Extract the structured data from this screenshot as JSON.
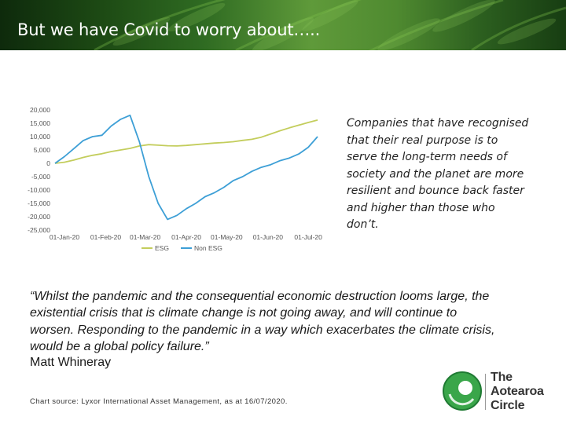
{
  "header": {
    "title": "But we have Covid to worry about….."
  },
  "sidebar_text": "Companies that have recognised that their real purpose is to serve the long-term needs of society and the planet are more resilient and bounce back faster and higher than those who don’t.",
  "quote": {
    "text": "“Whilst the pandemic and the consequential economic destruction looms large, the existential crisis that is climate change is not going away, and will continue to worsen. Responding to the pandemic in a way which exacerbates the climate crisis, would be a global policy failure.”",
    "author": "Matt Whineray"
  },
  "source_note": "Chart source: Lyxor International Asset Management, as at 16/07/2020.",
  "logo": {
    "lines": [
      "The",
      "Aotearoa",
      "Circle"
    ]
  },
  "colors": {
    "esg": "#c3cd5c",
    "non_esg": "#3d9fd6",
    "banner": "#2f6b22",
    "logo_green": "#3aa64a"
  },
  "chart_data": {
    "type": "line",
    "x": [
      "01-Jan-20",
      "08-Jan-20",
      "15-Jan-20",
      "22-Jan-20",
      "29-Jan-20",
      "05-Feb-20",
      "12-Feb-20",
      "19-Feb-20",
      "26-Feb-20",
      "04-Mar-20",
      "11-Mar-20",
      "18-Mar-20",
      "25-Mar-20",
      "01-Apr-20",
      "08-Apr-20",
      "15-Apr-20",
      "22-Apr-20",
      "29-Apr-20",
      "06-May-20",
      "13-May-20",
      "20-May-20",
      "27-May-20",
      "03-Jun-20",
      "10-Jun-20",
      "17-Jun-20",
      "24-Jun-20",
      "01-Jul-20",
      "08-Jul-20",
      "15-Jul-20"
    ],
    "series": [
      {
        "name": "ESG",
        "values": [
          0,
          400,
          1200,
          2200,
          3000,
          3600,
          4400,
          5000,
          5600,
          6500,
          7000,
          6800,
          6600,
          6500,
          6700,
          7000,
          7300,
          7600,
          7800,
          8100,
          8600,
          9000,
          9800,
          11000,
          12200,
          13300,
          14300,
          15300,
          16200
        ]
      },
      {
        "name": "Non ESG",
        "values": [
          0,
          2500,
          5500,
          8500,
          10000,
          10500,
          14000,
          16500,
          18000,
          8000,
          -5000,
          -15000,
          -21000,
          -19500,
          -17000,
          -15000,
          -12500,
          -11000,
          -9000,
          -6500,
          -5000,
          -3000,
          -1500,
          -500,
          1000,
          2000,
          3500,
          6000,
          10000
        ]
      }
    ],
    "xticks": [
      "01-Jan-20",
      "01-Feb-20",
      "01-Mar-20",
      "01-Apr-20",
      "01-May-20",
      "01-Jun-20",
      "01-Jul-20"
    ],
    "yticks": [
      "20,000",
      "15,000",
      "10,000",
      "5,000",
      "0",
      "-5,000",
      "-10,000",
      "-15,000",
      "-20,000",
      "-25,000"
    ],
    "ylim": [
      -25000,
      20000
    ],
    "legend": [
      "ESG",
      "Non ESG"
    ],
    "legend_position": "bottom",
    "grid": false
  }
}
